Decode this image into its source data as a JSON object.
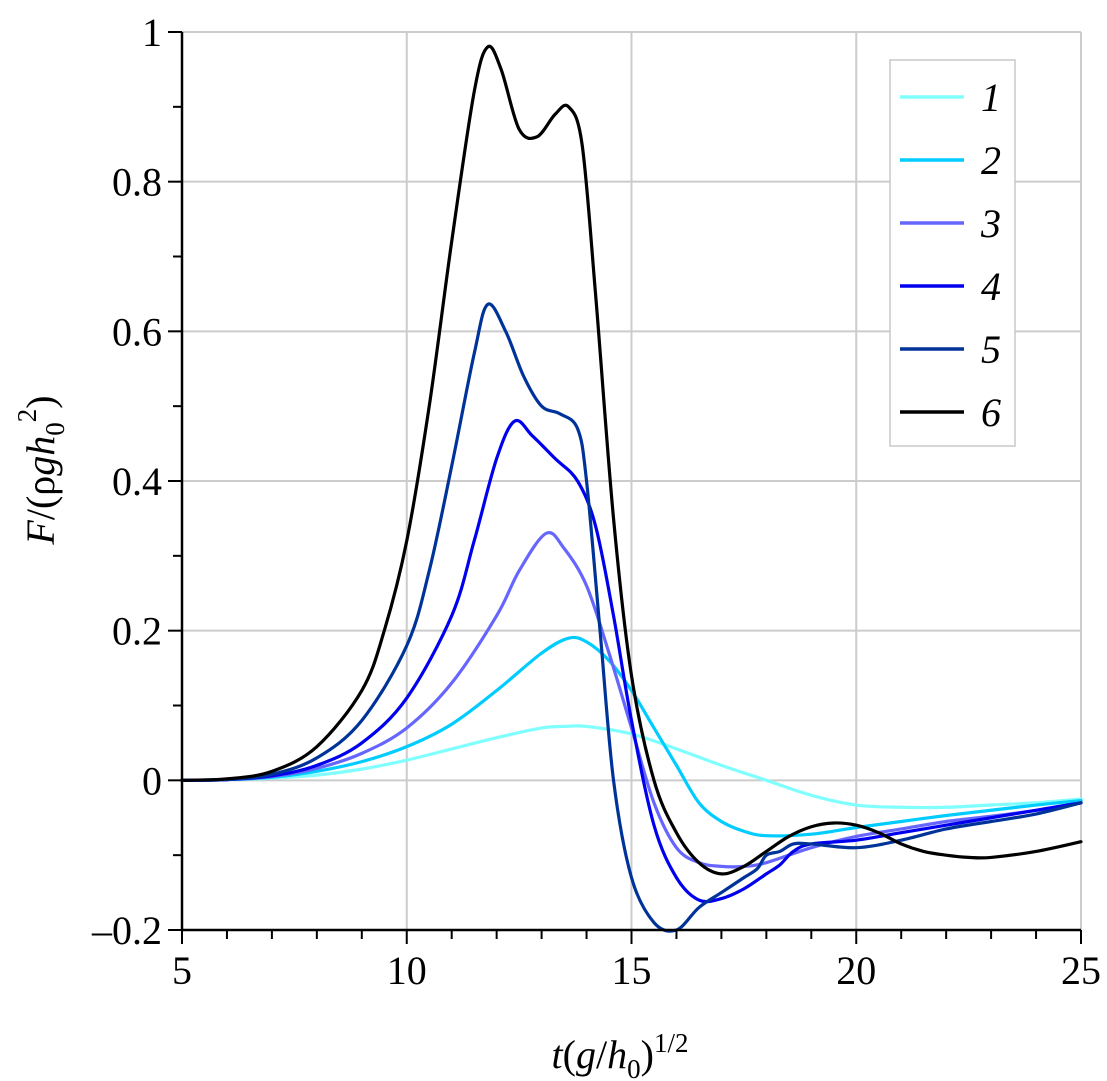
{
  "chart_data": {
    "type": "line",
    "title": "",
    "xlabel": "t(g/h0)^1/2",
    "xlabel_parts": {
      "t": "t",
      "open": "(",
      "g": "g",
      "slash": "/",
      "h": "h",
      "sub": "0",
      "close": ")",
      "sup": "1/2"
    },
    "ylabel": "F/(ρgh0^2)",
    "ylabel_parts": {
      "F": "F",
      "slash": "/(ρ",
      "g": "g",
      "h": "h",
      "sub": "0",
      "sup": "2",
      "close": ")"
    },
    "xlim": [
      5,
      25
    ],
    "ylim": [
      -0.2,
      1.0
    ],
    "xticks": [
      5,
      10,
      15,
      20,
      25
    ],
    "xtick_labels": [
      "5",
      "10",
      "15",
      "20",
      "25"
    ],
    "yticks": [
      -0.2,
      0,
      0.2,
      0.4,
      0.6,
      0.8,
      1.0
    ],
    "ytick_labels": [
      "–0.2",
      "0",
      "0.2",
      "0.4",
      "0.6",
      "0.8",
      "1"
    ],
    "grid": true,
    "legend_position": "top-right",
    "series": [
      {
        "name": "1",
        "color": "#80ffff",
        "points": [
          [
            5,
            0
          ],
          [
            6,
            0.001
          ],
          [
            7,
            0.003
          ],
          [
            8,
            0.007
          ],
          [
            9,
            0.015
          ],
          [
            10,
            0.027
          ],
          [
            11,
            0.042
          ],
          [
            12,
            0.057
          ],
          [
            13,
            0.07
          ],
          [
            13.5,
            0.072
          ],
          [
            14,
            0.072
          ],
          [
            15,
            0.062
          ],
          [
            16,
            0.042
          ],
          [
            17,
            0.02
          ],
          [
            18,
            0
          ],
          [
            19,
            -0.02
          ],
          [
            20,
            -0.033
          ],
          [
            21,
            -0.036
          ],
          [
            22,
            -0.036
          ],
          [
            23,
            -0.033
          ],
          [
            24,
            -0.03
          ],
          [
            25,
            -0.025
          ]
        ]
      },
      {
        "name": "2",
        "color": "#00ccff",
        "points": [
          [
            5,
            0
          ],
          [
            6,
            0.001
          ],
          [
            7,
            0.004
          ],
          [
            8,
            0.012
          ],
          [
            9,
            0.025
          ],
          [
            10,
            0.045
          ],
          [
            11,
            0.075
          ],
          [
            12,
            0.12
          ],
          [
            13,
            0.17
          ],
          [
            13.6,
            0.19
          ],
          [
            14,
            0.185
          ],
          [
            14.5,
            0.16
          ],
          [
            15,
            0.12
          ],
          [
            15.5,
            0.07
          ],
          [
            16,
            0.02
          ],
          [
            16.5,
            -0.03
          ],
          [
            17,
            -0.055
          ],
          [
            17.5,
            -0.068
          ],
          [
            18,
            -0.074
          ],
          [
            19,
            -0.072
          ],
          [
            20,
            -0.063
          ],
          [
            21,
            -0.055
          ],
          [
            22,
            -0.047
          ],
          [
            23,
            -0.04
          ],
          [
            24,
            -0.033
          ],
          [
            25,
            -0.027
          ]
        ]
      },
      {
        "name": "3",
        "color": "#6666ff",
        "points": [
          [
            5,
            0
          ],
          [
            6,
            0.001
          ],
          [
            7,
            0.005
          ],
          [
            8,
            0.016
          ],
          [
            9,
            0.036
          ],
          [
            10,
            0.07
          ],
          [
            11,
            0.13
          ],
          [
            12,
            0.22
          ],
          [
            12.5,
            0.28
          ],
          [
            13.1,
            0.33
          ],
          [
            13.5,
            0.31
          ],
          [
            14,
            0.26
          ],
          [
            14.5,
            0.17
          ],
          [
            15,
            0.07
          ],
          [
            15.5,
            -0.03
          ],
          [
            16,
            -0.09
          ],
          [
            16.5,
            -0.11
          ],
          [
            17,
            -0.115
          ],
          [
            17.5,
            -0.115
          ],
          [
            18,
            -0.11
          ],
          [
            19,
            -0.09
          ],
          [
            20,
            -0.075
          ],
          [
            21,
            -0.065
          ],
          [
            22,
            -0.055
          ],
          [
            23,
            -0.048
          ],
          [
            24,
            -0.04
          ],
          [
            25,
            -0.03
          ]
        ]
      },
      {
        "name": "4",
        "color": "#0000ee",
        "points": [
          [
            5,
            0
          ],
          [
            6,
            0.001
          ],
          [
            7,
            0.006
          ],
          [
            8,
            0.02
          ],
          [
            9,
            0.05
          ],
          [
            10,
            0.11
          ],
          [
            11,
            0.22
          ],
          [
            11.5,
            0.32
          ],
          [
            12,
            0.43
          ],
          [
            12.4,
            0.48
          ],
          [
            12.8,
            0.46
          ],
          [
            13.3,
            0.43
          ],
          [
            13.8,
            0.4
          ],
          [
            14.2,
            0.34
          ],
          [
            14.6,
            0.22
          ],
          [
            15,
            0.08
          ],
          [
            15.5,
            -0.06
          ],
          [
            16,
            -0.13
          ],
          [
            16.5,
            -0.16
          ],
          [
            17,
            -0.158
          ],
          [
            17.5,
            -0.145
          ],
          [
            18,
            -0.125
          ],
          [
            18.3,
            -0.113
          ],
          [
            18.6,
            -0.095
          ],
          [
            19,
            -0.085
          ],
          [
            20,
            -0.08
          ],
          [
            21,
            -0.07
          ],
          [
            22,
            -0.06
          ],
          [
            23,
            -0.05
          ],
          [
            24,
            -0.04
          ],
          [
            25,
            -0.03
          ]
        ]
      },
      {
        "name": "5",
        "color": "#003399",
        "points": [
          [
            5,
            0
          ],
          [
            6,
            0.001
          ],
          [
            7,
            0.008
          ],
          [
            8,
            0.03
          ],
          [
            9,
            0.08
          ],
          [
            10,
            0.18
          ],
          [
            10.5,
            0.28
          ],
          [
            11,
            0.42
          ],
          [
            11.5,
            0.57
          ],
          [
            11.8,
            0.636
          ],
          [
            12.2,
            0.6
          ],
          [
            12.6,
            0.54
          ],
          [
            13,
            0.5
          ],
          [
            13.4,
            0.49
          ],
          [
            13.8,
            0.47
          ],
          [
            14,
            0.4
          ],
          [
            14.3,
            0.2
          ],
          [
            14.6,
            0
          ],
          [
            15,
            -0.13
          ],
          [
            15.5,
            -0.19
          ],
          [
            16,
            -0.2
          ],
          [
            16.5,
            -0.17
          ],
          [
            17,
            -0.15
          ],
          [
            17.5,
            -0.13
          ],
          [
            17.8,
            -0.118
          ],
          [
            18,
            -0.1
          ],
          [
            18.3,
            -0.095
          ],
          [
            18.6,
            -0.085
          ],
          [
            19,
            -0.085
          ],
          [
            20,
            -0.09
          ],
          [
            21,
            -0.08
          ],
          [
            22,
            -0.065
          ],
          [
            23,
            -0.055
          ],
          [
            24,
            -0.045
          ],
          [
            25,
            -0.03
          ]
        ]
      },
      {
        "name": "6",
        "color": "#000000",
        "points": [
          [
            5,
            0
          ],
          [
            6,
            0.002
          ],
          [
            7,
            0.012
          ],
          [
            8,
            0.045
          ],
          [
            9,
            0.12
          ],
          [
            9.5,
            0.2
          ],
          [
            10,
            0.32
          ],
          [
            10.5,
            0.5
          ],
          [
            11,
            0.72
          ],
          [
            11.5,
            0.92
          ],
          [
            11.8,
            0.98
          ],
          [
            12.1,
            0.95
          ],
          [
            12.5,
            0.87
          ],
          [
            12.9,
            0.86
          ],
          [
            13.3,
            0.89
          ],
          [
            13.6,
            0.9
          ],
          [
            13.9,
            0.85
          ],
          [
            14.2,
            0.65
          ],
          [
            14.6,
            0.35
          ],
          [
            15,
            0.14
          ],
          [
            15.5,
            0.0
          ],
          [
            16,
            -0.07
          ],
          [
            16.5,
            -0.11
          ],
          [
            17,
            -0.125
          ],
          [
            17.5,
            -0.115
          ],
          [
            18,
            -0.095
          ],
          [
            18.5,
            -0.075
          ],
          [
            19,
            -0.062
          ],
          [
            19.5,
            -0.057
          ],
          [
            20,
            -0.06
          ],
          [
            20.5,
            -0.07
          ],
          [
            21,
            -0.085
          ],
          [
            21.5,
            -0.095
          ],
          [
            22,
            -0.1
          ],
          [
            22.5,
            -0.103
          ],
          [
            23,
            -0.103
          ],
          [
            24,
            -0.095
          ],
          [
            25,
            -0.082
          ]
        ]
      }
    ]
  }
}
